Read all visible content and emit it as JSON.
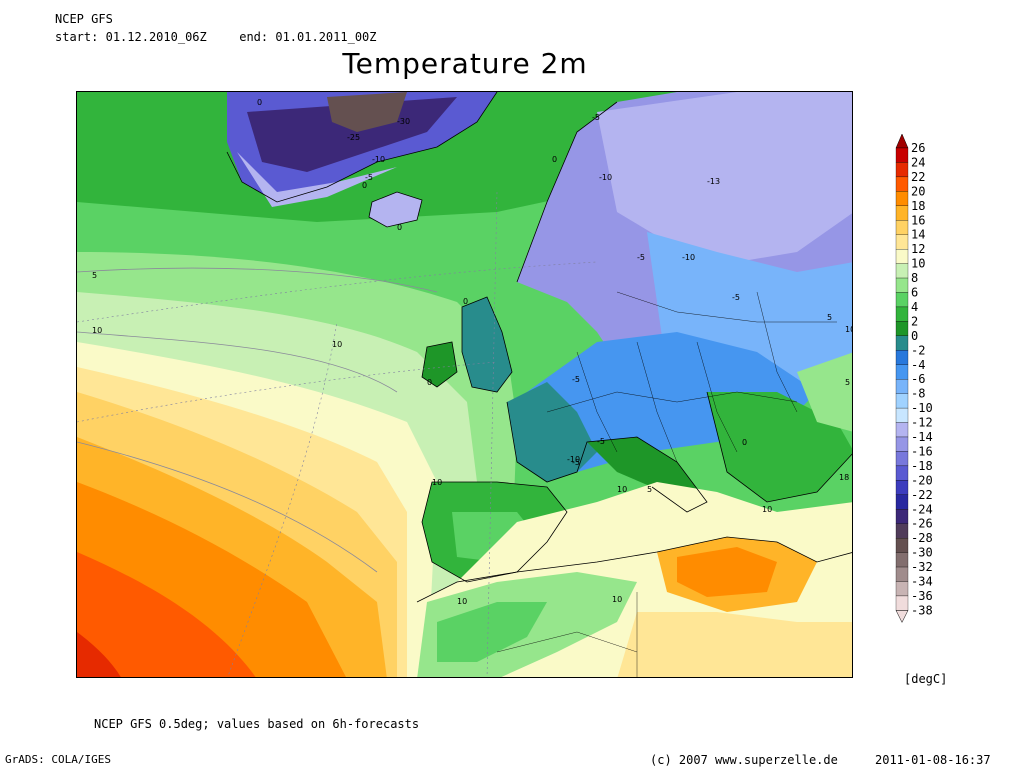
{
  "header": {
    "model": "NCEP GFS",
    "start_label": "start:",
    "start": "01.12.2010_06Z",
    "end_label": "end:",
    "end": "01.01.2011_00Z",
    "title": "Temperature 2m"
  },
  "footer": {
    "note": "NCEP GFS 0.5deg; values based on 6h-forecasts",
    "grads": "GrADS: COLA/IGES",
    "copyright": "(c) 2007 www.superzelle.de",
    "timestamp": "2011-01-08-16:37"
  },
  "legend": {
    "unit": "[degC]",
    "levels": [
      {
        "value": "26",
        "color": "#a00000"
      },
      {
        "value": "24",
        "color": "#c80000"
      },
      {
        "value": "22",
        "color": "#e62a00"
      },
      {
        "value": "20",
        "color": "#ff5a00"
      },
      {
        "value": "18",
        "color": "#ff8c00"
      },
      {
        "value": "16",
        "color": "#ffb428"
      },
      {
        "value": "14",
        "color": "#ffd264"
      },
      {
        "value": "12",
        "color": "#ffe696"
      },
      {
        "value": "10",
        "color": "#fafac8"
      },
      {
        "value": "8",
        "color": "#c8f0b4"
      },
      {
        "value": "6",
        "color": "#96e68c"
      },
      {
        "value": "4",
        "color": "#5ad264"
      },
      {
        "value": "2",
        "color": "#32b43c"
      },
      {
        "value": "0",
        "color": "#1e9628"
      },
      {
        "value": "-2",
        "color": "#288c8c"
      },
      {
        "value": "-4",
        "color": "#2878dc"
      },
      {
        "value": "-6",
        "color": "#4696f0"
      },
      {
        "value": "-8",
        "color": "#78b4fa"
      },
      {
        "value": "-10",
        "color": "#a0d2ff"
      },
      {
        "value": "-12",
        "color": "#c8e6ff"
      },
      {
        "value": "-14",
        "color": "#b4b4f0"
      },
      {
        "value": "-16",
        "color": "#9696e6"
      },
      {
        "value": "-18",
        "color": "#7878dc"
      },
      {
        "value": "-20",
        "color": "#5a5ad2"
      },
      {
        "value": "-22",
        "color": "#3c3cbe"
      },
      {
        "value": "-24",
        "color": "#2828a0"
      },
      {
        "value": "-26",
        "color": "#3c2878"
      },
      {
        "value": "-28",
        "color": "#503c5a"
      },
      {
        "value": "-30",
        "color": "#645050"
      },
      {
        "value": "-32",
        "color": "#826e6e"
      },
      {
        "value": "-34",
        "color": "#a08c8c"
      },
      {
        "value": "-36",
        "color": "#c8b4b4"
      },
      {
        "value": "-38",
        "color": "#f0dcdc"
      }
    ]
  },
  "map_labels": [
    "0",
    "-25",
    "-30",
    "-10",
    "-5",
    "0",
    "0",
    "-5",
    "-10",
    "-13",
    "0",
    "-5",
    "-10",
    "-5",
    "-5",
    "5",
    "10",
    "10",
    "0",
    "0",
    "-5",
    "-5",
    "-10",
    "5",
    "10",
    "5",
    "0",
    "10",
    "10",
    "5",
    "10",
    "10",
    "10",
    "18"
  ]
}
